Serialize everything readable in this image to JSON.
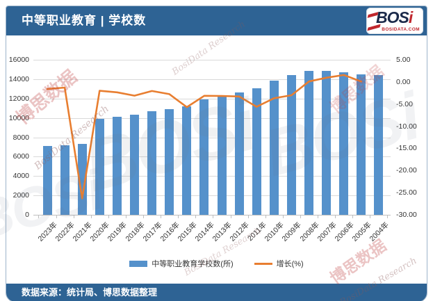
{
  "header": {
    "title": "中等职业教育 | 学校数"
  },
  "logo": {
    "name_main": "BOS",
    "name_i": "i",
    "domain": "BOSIDATA.COM"
  },
  "footer": {
    "source": "数据来源：统计局、博思数据整理"
  },
  "watermarks": {
    "brand_cn": "博思数据",
    "brand_script": "BosiData Research",
    "brand_ghost": "BOSi"
  },
  "colors": {
    "bar": "#5591CB",
    "line": "#E87E30",
    "header_bg": "#2E6394",
    "grid": "#D9D9D9",
    "axis": "#BFBFBF",
    "label": "#333333",
    "logo_navy": "#1B2A4A",
    "logo_red": "#C0272D"
  },
  "chart_data": {
    "type": "bar",
    "subtype": "bar+line combo, dual axis",
    "categories": [
      "2023年",
      "2022年",
      "2021年",
      "2020年",
      "2019年",
      "2018年",
      "2017年",
      "2016年",
      "2015年",
      "2014年",
      "2013年",
      "2012年",
      "2011年",
      "2010年",
      "2009年",
      "2008年",
      "2007年",
      "2006年",
      "2005年",
      "2004年"
    ],
    "series": [
      {
        "name": "中等职业教育学校数(所)",
        "type": "bar",
        "axis": "left",
        "values": [
          7085,
          7201,
          7294,
          9896,
          10098,
          10340,
          10671,
          10893,
          11202,
          11878,
          12262,
          12663,
          13093,
          13871,
          14401,
          14847,
          14832,
          14693,
          14466,
          14454
        ]
      },
      {
        "name": "增长(%)",
        "type": "line",
        "axis": "right",
        "values": [
          -1.61,
          -1.28,
          -26.29,
          -2.0,
          -2.34,
          -3.1,
          -2.04,
          -2.76,
          -5.69,
          -3.13,
          -3.17,
          -3.28,
          -5.61,
          -3.68,
          -3.0,
          0.1,
          0.95,
          1.57,
          0.08,
          null
        ]
      }
    ],
    "left_axis": {
      "min": 0,
      "max": 16000,
      "step": 2000,
      "ticks": [
        0,
        2000,
        4000,
        6000,
        8000,
        10000,
        12000,
        14000,
        16000
      ]
    },
    "right_axis": {
      "min": -30,
      "max": 5,
      "step": 5,
      "ticks": [
        "5.00",
        "0.00",
        "-5.00",
        "-10.00",
        "-15.00",
        "-20.00",
        "-25.00",
        "-30.00"
      ]
    },
    "grid": "horizontal",
    "legend_position": "bottom"
  }
}
